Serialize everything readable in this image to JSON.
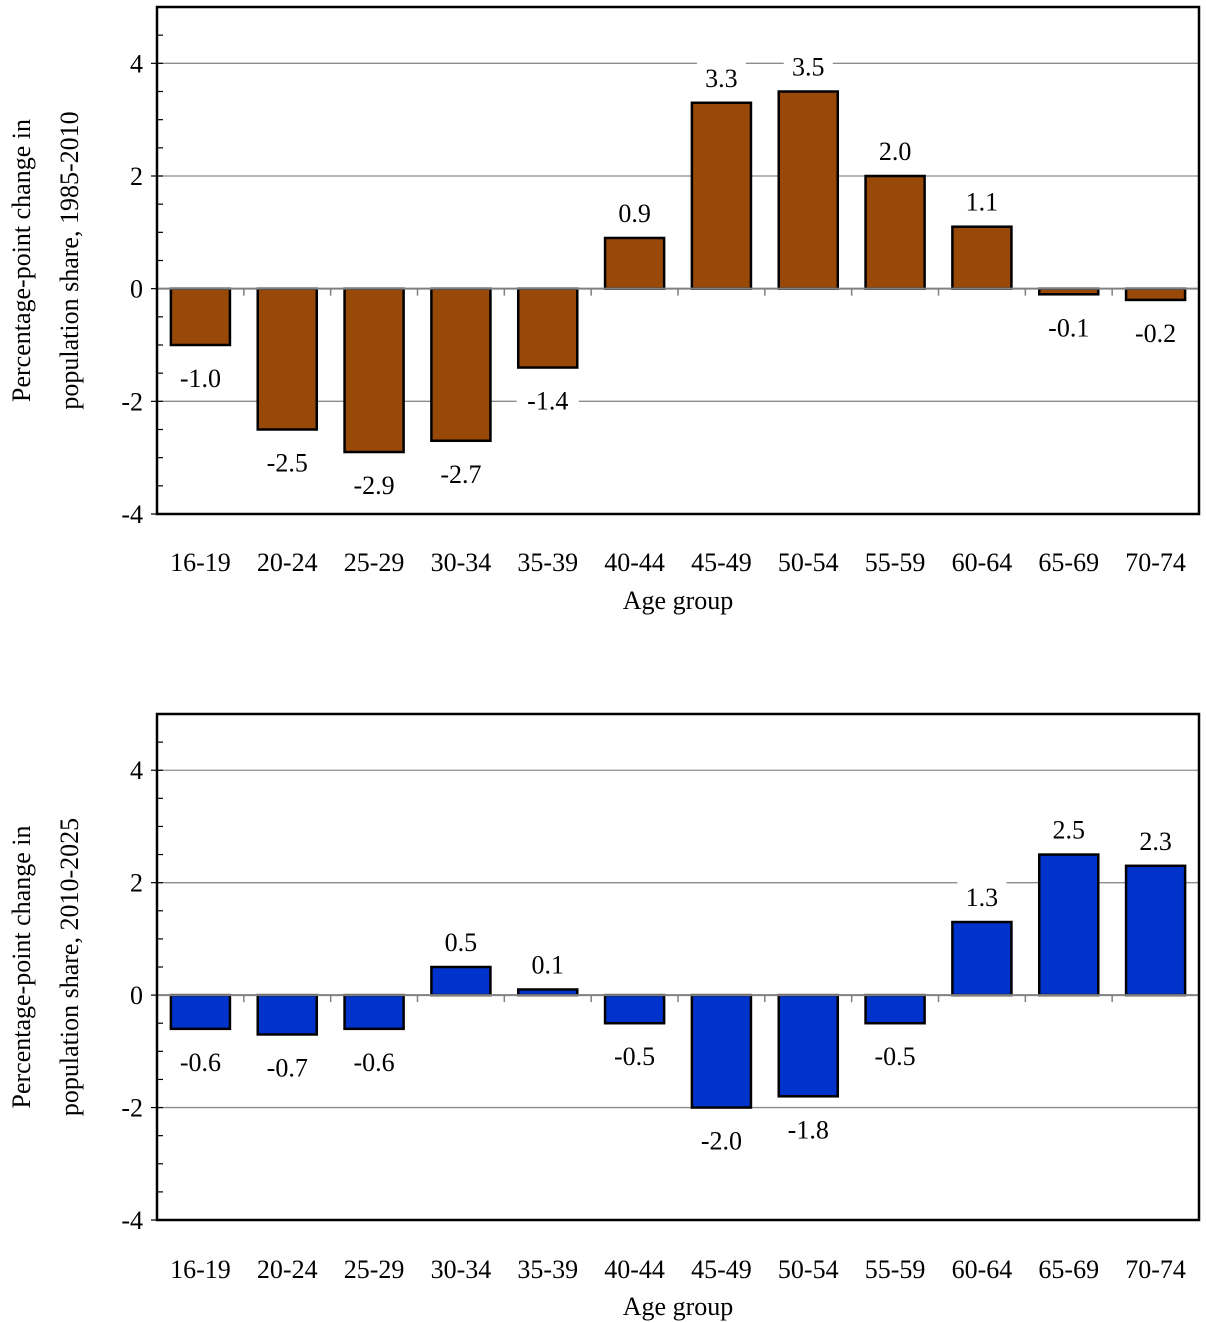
{
  "chart_data": [
    {
      "type": "bar",
      "categories": [
        "16-19",
        "20-24",
        "25-29",
        "30-34",
        "35-39",
        "40-44",
        "45-49",
        "50-54",
        "55-59",
        "60-64",
        "65-69",
        "70-74"
      ],
      "values": [
        -1.0,
        -2.5,
        -2.9,
        -2.7,
        -1.4,
        0.9,
        3.3,
        3.5,
        2.0,
        1.1,
        -0.1,
        -0.2
      ],
      "data_labels": [
        "-1.0",
        "-2.5",
        "-2.9",
        "-2.7",
        "-1.4",
        "0.9",
        "3.3",
        "3.5",
        "2.0",
        "1.1",
        "-0.1",
        "-0.2"
      ],
      "title": "",
      "xlabel": "Age group",
      "ylabel_lines": [
        "Percentage-point change in",
        "population share, 1985-2010"
      ],
      "ylim": [
        -4,
        5
      ],
      "yticks": [
        -4,
        -2,
        0,
        2,
        4
      ],
      "grid": true,
      "bar_color": "#984807"
    },
    {
      "type": "bar",
      "categories": [
        "16-19",
        "20-24",
        "25-29",
        "30-34",
        "35-39",
        "40-44",
        "45-49",
        "50-54",
        "55-59",
        "60-64",
        "65-69",
        "70-74"
      ],
      "values": [
        -0.6,
        -0.7,
        -0.6,
        0.5,
        0.1,
        -0.5,
        -2.0,
        -1.8,
        -0.5,
        1.3,
        2.5,
        2.3
      ],
      "data_labels": [
        "-0.6",
        "-0.7",
        "-0.6",
        "0.5",
        "0.1",
        "-0.5",
        "-2.0",
        "-1.8",
        "-0.5",
        "1.3",
        "2.5",
        "2.3"
      ],
      "title": "",
      "xlabel": "Age group",
      "ylabel_lines": [
        "Percentage-point change in",
        "population share, 2010-2025"
      ],
      "ylim": [
        -4,
        5
      ],
      "yticks": [
        -4,
        -2,
        0,
        2,
        4
      ],
      "grid": true,
      "bar_color": "#0033CC"
    }
  ]
}
